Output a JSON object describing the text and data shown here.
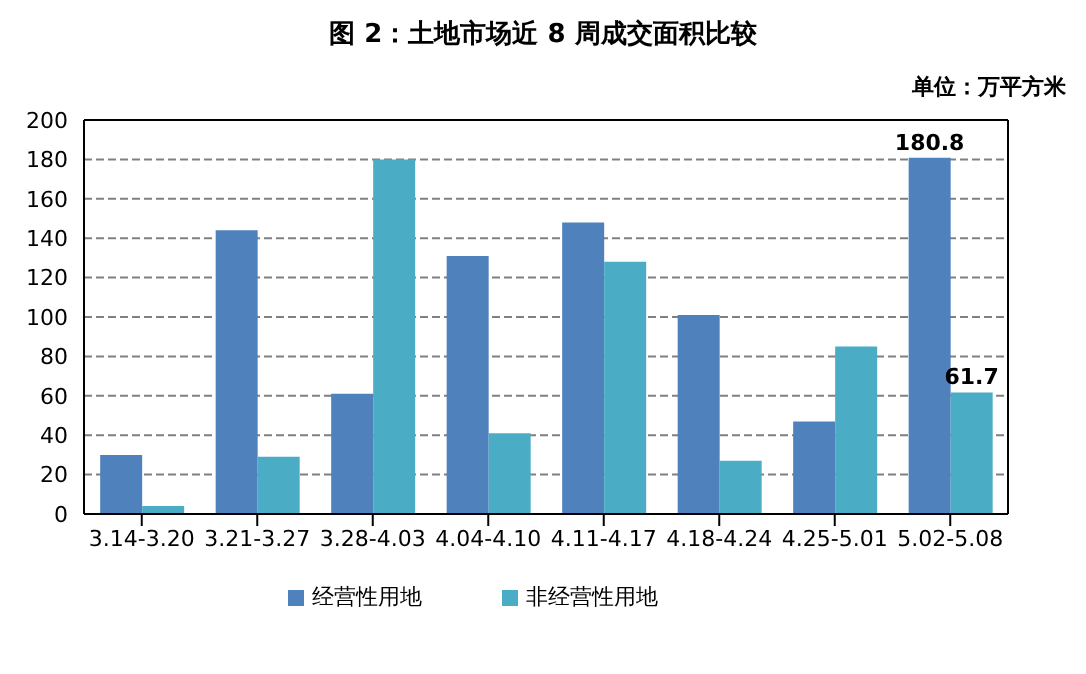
{
  "chart_data": {
    "type": "bar",
    "title": "图 2：土地市场近 8 周成交面积比较",
    "subtitle": "单位：万平方米",
    "categories": [
      "3.14-3.20",
      "3.21-3.27",
      "3.28-4.03",
      "4.04-4.10",
      "4.11-4.17",
      "4.18-4.24",
      "4.25-5.01",
      "5.02-5.08"
    ],
    "series": [
      {
        "name": "经营性用地",
        "color": "#4f81bd",
        "values": [
          30,
          144,
          61,
          131,
          148,
          101,
          47,
          180.8
        ],
        "value_labels": [
          null,
          null,
          null,
          null,
          null,
          null,
          null,
          "180.8"
        ]
      },
      {
        "name": "非经营性用地",
        "color": "#4bacc6",
        "values": [
          4,
          29,
          180,
          41,
          128,
          27,
          85,
          61.7
        ],
        "value_labels": [
          null,
          null,
          null,
          null,
          null,
          null,
          null,
          "61.7"
        ]
      }
    ],
    "ylim": [
      0,
      200
    ],
    "yticks": [
      0,
      20,
      40,
      60,
      80,
      100,
      120,
      140,
      160,
      180,
      200
    ],
    "grid": "y",
    "legend": "bottom"
  }
}
